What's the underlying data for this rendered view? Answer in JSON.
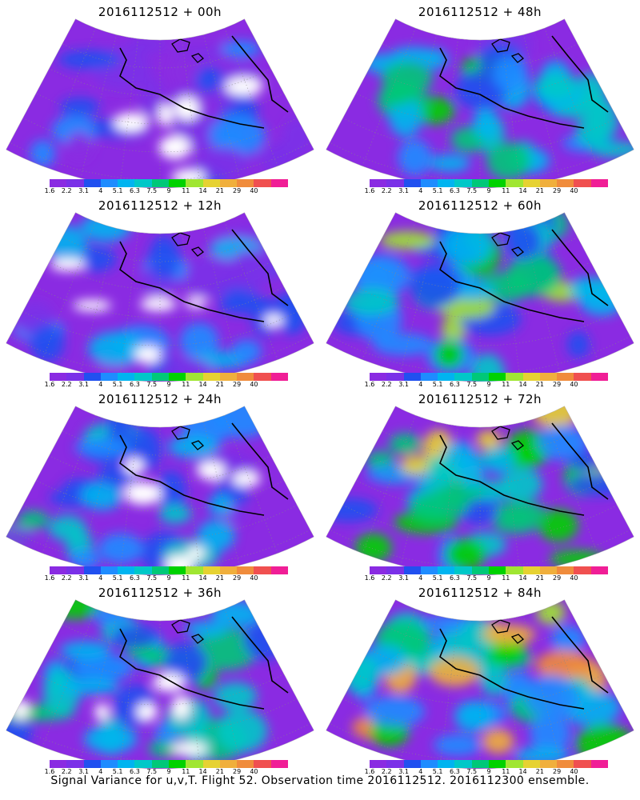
{
  "panels": [
    {
      "title": "2016112512 + 00h",
      "lead_hours": 0
    },
    {
      "title": "2016112512 + 48h",
      "lead_hours": 48
    },
    {
      "title": "2016112512 + 12h",
      "lead_hours": 12
    },
    {
      "title": "2016112512 + 60h",
      "lead_hours": 60
    },
    {
      "title": "2016112512 + 24h",
      "lead_hours": 24
    },
    {
      "title": "2016112512 + 72h",
      "lead_hours": 72
    },
    {
      "title": "2016112512 + 36h",
      "lead_hours": 36
    },
    {
      "title": "2016112512 + 84h",
      "lead_hours": 84
    }
  ],
  "colorbar": {
    "tick_labels": [
      "1.6",
      "2.2",
      "3.1",
      "4",
      "5.1",
      "6.3",
      "7.5",
      "9",
      "11",
      "14",
      "21",
      "29",
      "40"
    ],
    "colors": [
      "#8a2be2",
      "#7a30e8",
      "#2050f0",
      "#1e8cff",
      "#00b4f0",
      "#00c8c8",
      "#00c878",
      "#00d200",
      "#a0e632",
      "#e6d232",
      "#f0af3c",
      "#f08c3c",
      "#f05050",
      "#f01e96"
    ]
  },
  "caption": "Signal Variance for u,v,T. Flight 52. Observation time 2016112512. 2016112300 ensemble."
}
